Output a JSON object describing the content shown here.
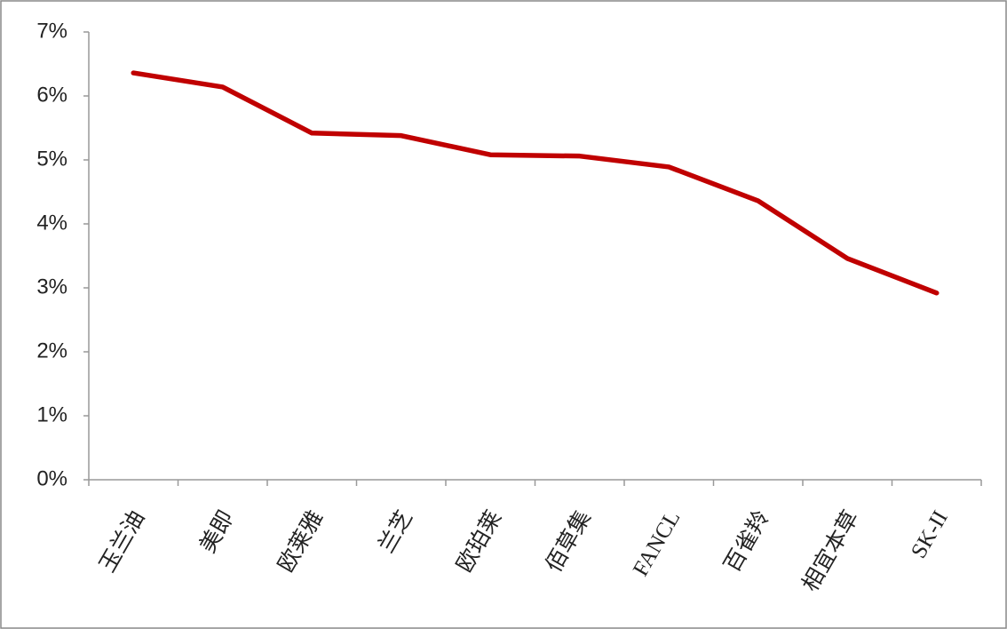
{
  "chart_data": {
    "type": "line",
    "categories": [
      "玉兰油",
      "美即",
      "欧莱雅",
      "兰芝",
      "欧珀莱",
      "佰草集",
      "FANCL",
      "百雀羚",
      "相宜本草",
      "SK-II"
    ],
    "values": [
      6.36,
      6.14,
      5.42,
      5.38,
      5.08,
      5.06,
      4.89,
      4.36,
      3.46,
      2.92
    ],
    "color": "#c00000",
    "ylim": [
      0,
      7
    ],
    "yticks": [
      {
        "value": 0,
        "label": "0%"
      },
      {
        "value": 1,
        "label": "1%"
      },
      {
        "value": 2,
        "label": "2%"
      },
      {
        "value": 3,
        "label": "3%"
      },
      {
        "value": 4,
        "label": "4%"
      },
      {
        "value": 5,
        "label": "5%"
      },
      {
        "value": 6,
        "label": "6%"
      },
      {
        "value": 7,
        "label": "7%"
      }
    ],
    "grid": false
  }
}
